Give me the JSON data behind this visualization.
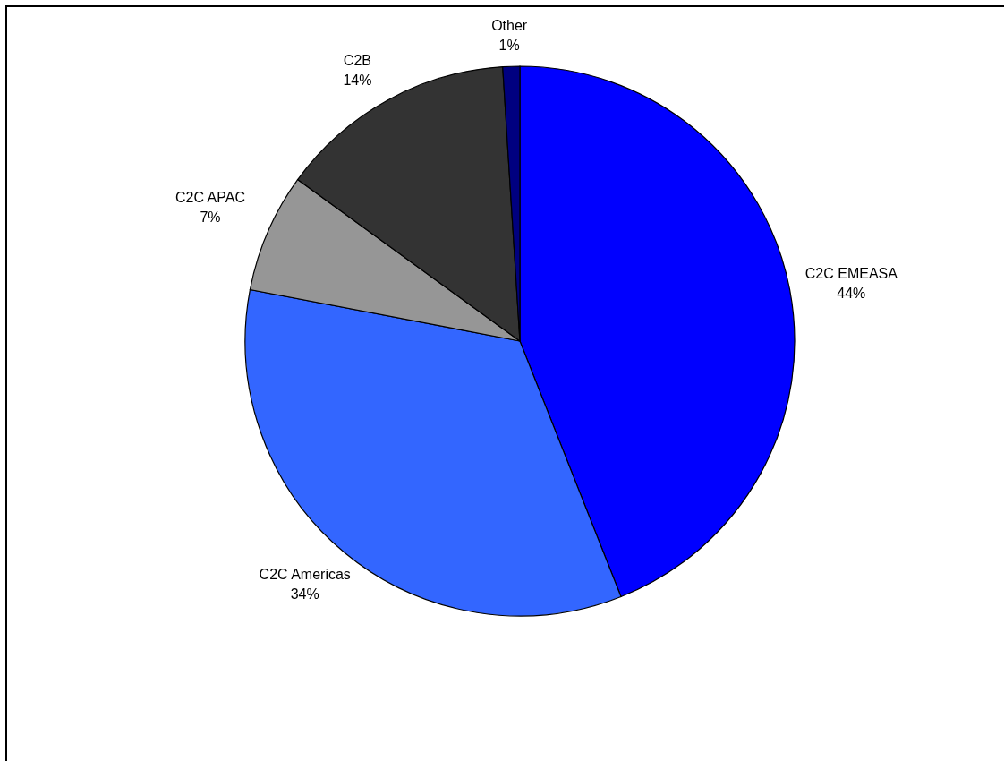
{
  "chart_data": {
    "type": "pie",
    "categories": [
      "C2C EMEASA",
      "C2C Americas",
      "C2C APAC",
      "C2B",
      "Other"
    ],
    "values": [
      44,
      34,
      7,
      14,
      1
    ],
    "colors": [
      "#0000ff",
      "#3366ff",
      "#969696",
      "#333333",
      "#000080"
    ],
    "value_labels": [
      "44%",
      "34%",
      "7%",
      "14%",
      "1%"
    ]
  }
}
